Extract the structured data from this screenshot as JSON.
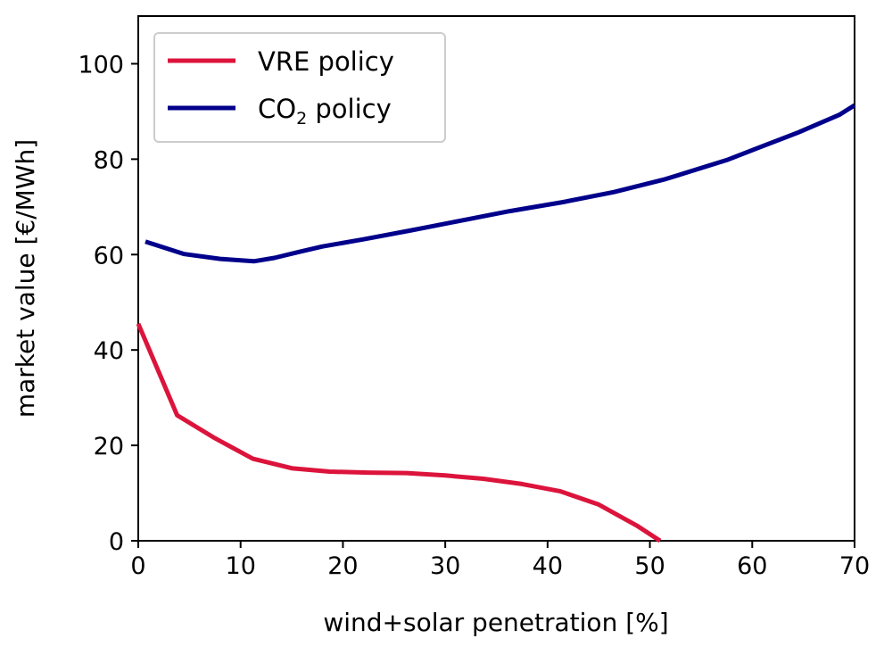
{
  "chart_data": {
    "type": "line",
    "title": "",
    "xlabel": "wind+solar penetration [%]",
    "ylabel": "market value [€/MWh]",
    "xlim": [
      0,
      70
    ],
    "ylim": [
      0,
      110
    ],
    "xticks": [
      0,
      10,
      20,
      30,
      40,
      50,
      60,
      70
    ],
    "yticks": [
      0,
      20,
      40,
      60,
      80,
      100
    ],
    "grid": false,
    "legend_position": "top-left",
    "series": [
      {
        "name": "VRE policy",
        "color": "#dc143c",
        "x": [
          0,
          3.8,
          7.5,
          11.2,
          15.0,
          18.7,
          22.5,
          26.2,
          30.0,
          33.7,
          37.5,
          41.2,
          45.0,
          48.7,
          51.0
        ],
        "y": [
          45.5,
          26.3,
          21.5,
          17.2,
          15.2,
          14.5,
          14.3,
          14.2,
          13.7,
          13.0,
          11.9,
          10.4,
          7.6,
          3.2,
          0
        ]
      },
      {
        "name": "CO2 policy",
        "legend_main": "CO",
        "legend_sub": "2",
        "legend_tail": " policy",
        "color": "#00008b",
        "x": [
          0.7,
          4.5,
          8.0,
          11.3,
          13.3,
          15.8,
          18.0,
          22.0,
          26.5,
          31.5,
          36.3,
          41.5,
          46.5,
          51.5,
          57.5,
          60.5,
          64.5,
          68.5,
          70
        ],
        "y": [
          62.7,
          60.1,
          59.1,
          58.6,
          59.3,
          60.6,
          61.7,
          63.2,
          65.0,
          67.1,
          69.1,
          71.0,
          73.1,
          75.8,
          79.8,
          82.3,
          85.6,
          89.3,
          91.3
        ]
      }
    ]
  }
}
